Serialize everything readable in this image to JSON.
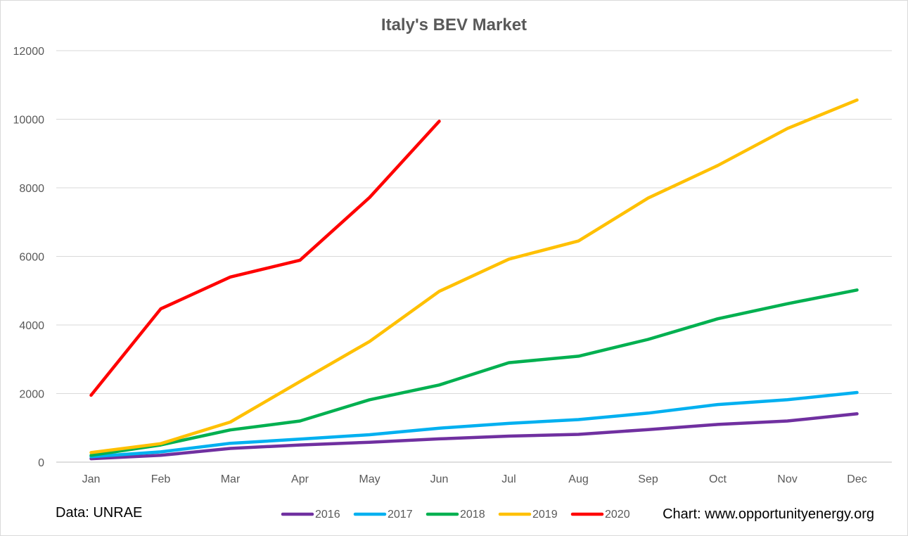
{
  "chart_data": {
    "type": "line",
    "title": "Italy's BEV Market",
    "xlabel": "",
    "ylabel": "",
    "categories": [
      "Jan",
      "Feb",
      "Mar",
      "Apr",
      "May",
      "Jun",
      "Jul",
      "Aug",
      "Sep",
      "Oct",
      "Nov",
      "Dec"
    ],
    "ylim": [
      0,
      12000
    ],
    "yticks": [
      0,
      2000,
      4000,
      6000,
      8000,
      10000,
      12000
    ],
    "grid": true,
    "legend": "bottom",
    "series": [
      {
        "name": "2016",
        "color": "#7030a0",
        "values": [
          100,
          200,
          400,
          500,
          580,
          680,
          760,
          810,
          950,
          1100,
          1200,
          1410
        ]
      },
      {
        "name": "2017",
        "color": "#00b0f0",
        "values": [
          160,
          300,
          550,
          670,
          800,
          990,
          1130,
          1240,
          1430,
          1680,
          1820,
          2030
        ]
      },
      {
        "name": "2018",
        "color": "#00b050",
        "values": [
          200,
          500,
          940,
          1200,
          1820,
          2250,
          2900,
          3090,
          3580,
          4180,
          4620,
          5020
        ]
      },
      {
        "name": "2019",
        "color": "#ffc000",
        "values": [
          280,
          540,
          1170,
          2350,
          3520,
          4980,
          5920,
          6450,
          7700,
          8650,
          9730,
          10560
        ]
      },
      {
        "name": "2020",
        "color": "#ff0000",
        "values": [
          1950,
          4470,
          5400,
          5890,
          7720,
          9940,
          null,
          null,
          null,
          null,
          null,
          null
        ]
      }
    ]
  },
  "notes": {
    "source": "Data: UNRAE",
    "credit": "Chart: www.opportunityenergy.org"
  }
}
